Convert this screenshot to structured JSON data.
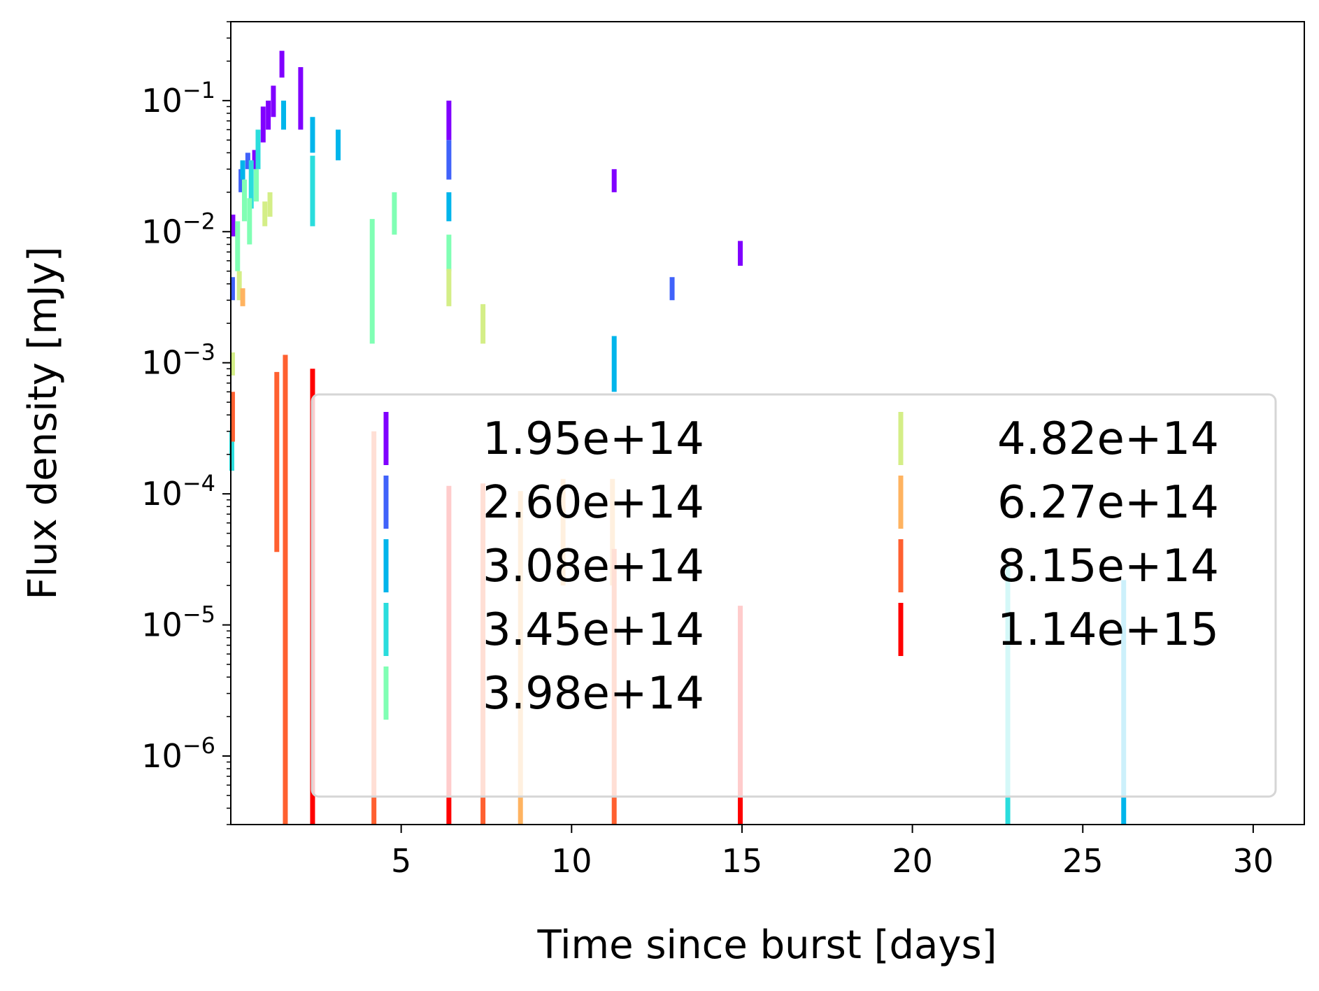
{
  "chart_data": {
    "type": "scatter",
    "mark": "vertical error bars (log-scale y)",
    "xlabel": "Time since burst [days]",
    "ylabel": "Flux density [mJy]",
    "xlim": [
      0,
      31.5
    ],
    "ylim": [
      3e-07,
      0.4
    ],
    "yscale": "log",
    "x_ticks": [
      5,
      10,
      15,
      20,
      25,
      30
    ],
    "y_ticks": [
      {
        "value": 0.1,
        "mantissa": "10",
        "exp": "−1"
      },
      {
        "value": 0.01,
        "mantissa": "10",
        "exp": "−2"
      },
      {
        "value": 0.001,
        "mantissa": "10",
        "exp": "−3"
      },
      {
        "value": 0.0001,
        "mantissa": "10",
        "exp": "−4"
      },
      {
        "value": 1e-05,
        "mantissa": "10",
        "exp": "−5"
      },
      {
        "value": 1e-06,
        "mantissa": "10",
        "exp": "−6"
      }
    ],
    "grid": false,
    "legend": {
      "placement": "lower-right",
      "columns": 2
    },
    "series": [
      {
        "name": "1.95e+14",
        "color": "#8000ff",
        "points": [
          {
            "x": 0.06,
            "lo": 0.0092,
            "hi": 0.0135
          },
          {
            "x": 0.7,
            "lo": 0.03,
            "hi": 0.042
          },
          {
            "x": 0.95,
            "lo": 0.048,
            "hi": 0.09
          },
          {
            "x": 1.1,
            "lo": 0.06,
            "hi": 0.1
          },
          {
            "x": 1.25,
            "lo": 0.075,
            "hi": 0.13
          },
          {
            "x": 1.5,
            "lo": 0.15,
            "hi": 0.24
          },
          {
            "x": 2.05,
            "lo": 0.06,
            "hi": 0.18
          },
          {
            "x": 6.4,
            "lo": 0.05,
            "hi": 0.1
          },
          {
            "x": 11.25,
            "lo": 0.02,
            "hi": 0.03
          },
          {
            "x": 14.95,
            "lo": 0.0055,
            "hi": 0.0085
          }
        ]
      },
      {
        "name": "2.60e+14",
        "color": "#4062fa",
        "points": [
          {
            "x": 0.05,
            "lo": 0.003,
            "hi": 0.0045
          },
          {
            "x": 0.3,
            "lo": 0.02,
            "hi": 0.03
          },
          {
            "x": 0.5,
            "lo": 0.03,
            "hi": 0.04
          },
          {
            "x": 6.4,
            "lo": 0.025,
            "hi": 0.05
          },
          {
            "x": 12.95,
            "lo": 0.003,
            "hi": 0.0045
          }
        ]
      },
      {
        "name": "3.08e+14",
        "color": "#00b5eb",
        "points": [
          {
            "x": 0.35,
            "lo": 0.025,
            "hi": 0.035
          },
          {
            "x": 1.55,
            "lo": 0.06,
            "hi": 0.1
          },
          {
            "x": 2.4,
            "lo": 0.04,
            "hi": 0.075
          },
          {
            "x": 3.15,
            "lo": 0.035,
            "hi": 0.06
          },
          {
            "x": 6.4,
            "lo": 0.012,
            "hi": 0.02
          },
          {
            "x": 11.25,
            "lo": 0.0006,
            "hi": 0.0016
          },
          {
            "x": 26.2,
            "lo": 3e-07,
            "hi": 2.2e-05
          }
        ]
      },
      {
        "name": "3.45e+14",
        "color": "#2adddd",
        "points": [
          {
            "x": 0.03,
            "lo": 0.00015,
            "hi": 0.0003
          },
          {
            "x": 0.6,
            "lo": 0.015,
            "hi": 0.035
          },
          {
            "x": 0.8,
            "lo": 0.03,
            "hi": 0.06
          },
          {
            "x": 2.4,
            "lo": 0.011,
            "hi": 0.038
          },
          {
            "x": 22.8,
            "lo": 3e-07,
            "hi": 3e-05
          }
        ]
      },
      {
        "name": "3.98e+14",
        "color": "#80ffb4",
        "points": [
          {
            "x": 0.2,
            "lo": 0.005,
            "hi": 0.012
          },
          {
            "x": 0.4,
            "lo": 0.012,
            "hi": 0.025
          },
          {
            "x": 0.55,
            "lo": 0.008,
            "hi": 0.018
          },
          {
            "x": 0.75,
            "lo": 0.017,
            "hi": 0.03
          },
          {
            "x": 4.15,
            "lo": 0.0014,
            "hi": 0.0125
          },
          {
            "x": 4.8,
            "lo": 0.0095,
            "hi": 0.02
          },
          {
            "x": 6.4,
            "lo": 0.005,
            "hi": 0.0095
          }
        ]
      },
      {
        "name": "4.82e+14",
        "color": "#d4ee87",
        "points": [
          {
            "x": 0.05,
            "lo": 0.0008,
            "hi": 0.0012
          },
          {
            "x": 0.25,
            "lo": 0.003,
            "hi": 0.005
          },
          {
            "x": 1.0,
            "lo": 0.011,
            "hi": 0.017
          },
          {
            "x": 1.15,
            "lo": 0.013,
            "hi": 0.02
          },
          {
            "x": 6.4,
            "lo": 0.0027,
            "hi": 0.0052
          },
          {
            "x": 7.4,
            "lo": 0.0014,
            "hi": 0.0028
          }
        ]
      },
      {
        "name": "6.27e+14",
        "color": "#ffb360",
        "points": [
          {
            "x": 0.35,
            "lo": 0.0027,
            "hi": 0.0037
          },
          {
            "x": 8.5,
            "lo": 3e-07,
            "hi": 0.000105
          },
          {
            "x": 9.75,
            "lo": 2e-05,
            "hi": 0.00013
          },
          {
            "x": 11.2,
            "lo": 2e-05,
            "hi": 0.00013
          }
        ]
      },
      {
        "name": "8.15e+14",
        "color": "#ff6030",
        "points": [
          {
            "x": 0.05,
            "lo": 0.00025,
            "hi": 0.0006
          },
          {
            "x": 1.35,
            "lo": 3.6e-05,
            "hi": 0.00085
          },
          {
            "x": 1.6,
            "lo": 3e-07,
            "hi": 0.00115
          },
          {
            "x": 4.2,
            "lo": 3e-07,
            "hi": 0.0003
          },
          {
            "x": 7.4,
            "lo": 3e-07,
            "hi": 0.00012
          },
          {
            "x": 11.25,
            "lo": 3e-07,
            "hi": 3.8e-05
          }
        ]
      },
      {
        "name": "1.14e+15",
        "color": "#ff0000",
        "points": [
          {
            "x": 2.4,
            "lo": 3e-07,
            "hi": 0.0009
          },
          {
            "x": 6.4,
            "lo": 3e-07,
            "hi": 0.000115
          },
          {
            "x": 14.95,
            "lo": 3e-07,
            "hi": 1.4e-05
          }
        ]
      }
    ]
  }
}
